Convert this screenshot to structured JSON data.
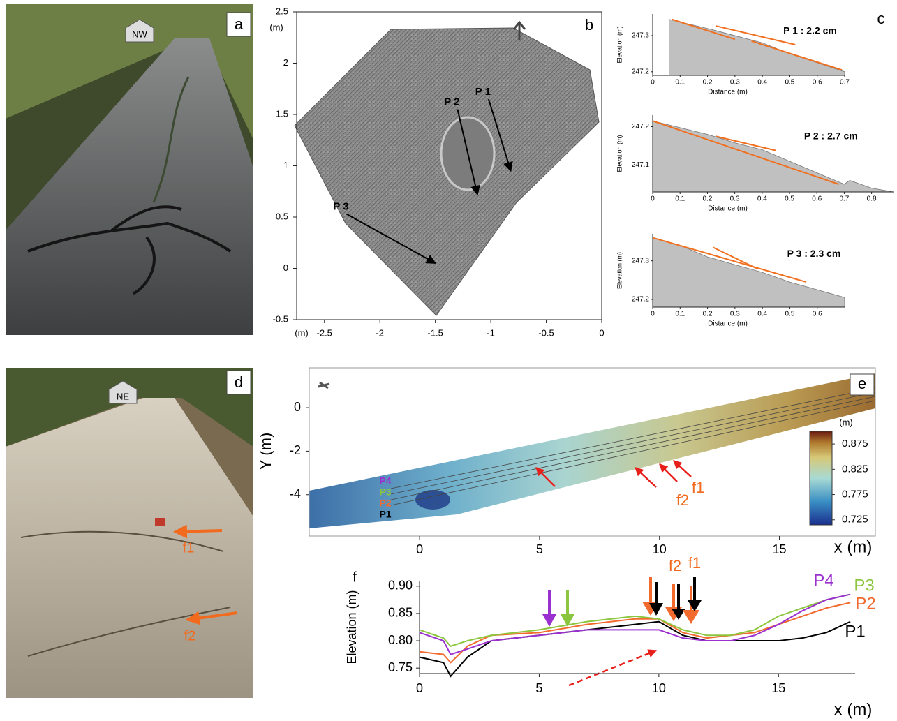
{
  "panels": {
    "a": {
      "label": "a",
      "tag": "NW"
    },
    "d": {
      "label": "d",
      "tag": "NE",
      "faults": [
        "f1",
        "f2"
      ]
    }
  },
  "chart_data": [
    {
      "type": "map",
      "label": "b",
      "x_unit": "(m)",
      "y_unit": "(m)",
      "xlim": [
        -2.75,
        0
      ],
      "ylim": [
        -0.5,
        2.5
      ],
      "xticks": [
        -2.5,
        -2,
        -1.5,
        -1,
        -0.5,
        0
      ],
      "yticks": [
        -0.5,
        0,
        0.5,
        1,
        1.5,
        2,
        2.5
      ],
      "profiles": [
        {
          "name": "P 1",
          "x": [
            -1.02,
            -0.82
          ],
          "y": [
            1.65,
            0.95
          ]
        },
        {
          "name": "P 2",
          "x": [
            -1.3,
            -1.12
          ],
          "y": [
            1.55,
            0.72
          ]
        },
        {
          "name": "P 3",
          "x": [
            -2.3,
            -1.5
          ],
          "y": [
            0.53,
            0.05
          ]
        }
      ]
    },
    {
      "type": "area",
      "label": "c",
      "title": "P 1 : 2.2 cm",
      "xlabel": "Distance (m)",
      "ylabel": "Elevation (m)",
      "xlim": [
        0,
        0.7
      ],
      "ylim": [
        247.19,
        247.36
      ],
      "xticks": [
        0,
        0.1,
        0.2,
        0.3,
        0.4,
        0.5,
        0.6,
        0.7
      ],
      "yticks": [
        247.2,
        247.3
      ],
      "color": "#c0c0c0",
      "x": [
        0.06,
        0.2,
        0.3,
        0.4,
        0.5,
        0.6,
        0.7
      ],
      "values": [
        247.345,
        247.32,
        247.3,
        247.28,
        247.25,
        247.225,
        247.2
      ],
      "fit_lines": [
        {
          "x": [
            0.07,
            0.3
          ],
          "y": [
            247.345,
            247.29
          ]
        },
        {
          "x": [
            0.23,
            0.52
          ],
          "y": [
            247.327,
            247.275
          ]
        },
        {
          "x": [
            0.36,
            0.69
          ],
          "y": [
            247.285,
            247.205
          ]
        }
      ]
    },
    {
      "type": "area",
      "title": "P 2 : 2.7 cm",
      "xlabel": "Distance (m)",
      "ylabel": "Elevation (m)",
      "xlim": [
        0,
        0.88
      ],
      "ylim": [
        247.03,
        247.23
      ],
      "xticks": [
        0,
        0.1,
        0.2,
        0.3,
        0.4,
        0.5,
        0.6,
        0.7,
        0.8
      ],
      "yticks": [
        247.1,
        247.2
      ],
      "color": "#c0c0c0",
      "x": [
        0,
        0.2,
        0.3,
        0.4,
        0.5,
        0.6,
        0.7,
        0.72,
        0.8,
        0.88
      ],
      "values": [
        247.215,
        247.18,
        247.158,
        247.14,
        247.11,
        247.08,
        247.05,
        247.06,
        247.04,
        247.03
      ],
      "fit_lines": [
        {
          "x": [
            0,
            0.68
          ],
          "y": [
            247.215,
            247.05
          ]
        },
        {
          "x": [
            0.23,
            0.45
          ],
          "y": [
            247.175,
            247.138
          ]
        }
      ]
    },
    {
      "type": "area",
      "title": "P 3 : 2.3 cm",
      "xlabel": "Distance (m)",
      "ylabel": "Elevation (m)",
      "xlim": [
        0,
        0.7
      ],
      "ylim": [
        247.18,
        247.37
      ],
      "xticks": [
        0,
        0.1,
        0.2,
        0.3,
        0.4,
        0.5,
        0.6
      ],
      "yticks": [
        247.2,
        247.3
      ],
      "color": "#c0c0c0",
      "x": [
        0,
        0.1,
        0.2,
        0.3,
        0.4,
        0.5,
        0.6,
        0.7
      ],
      "values": [
        247.36,
        247.34,
        247.31,
        247.29,
        247.27,
        247.245,
        247.225,
        247.205
      ],
      "fit_lines": [
        {
          "x": [
            0,
            0.56
          ],
          "y": [
            247.36,
            247.245
          ]
        },
        {
          "x": [
            0.22,
            0.38
          ],
          "y": [
            247.335,
            247.28
          ]
        }
      ]
    },
    {
      "type": "raster",
      "label": "e",
      "xlabel": "x (m)",
      "ylabel": "Y (m)",
      "xlim": [
        -4.6,
        19
      ],
      "ylim": [
        -5.9,
        1.83
      ],
      "xticks": [
        0,
        5,
        10,
        15
      ],
      "yticks": [
        0,
        -2,
        -4
      ],
      "colorbar": {
        "unit": "(m)",
        "lim": [
          0.715,
          0.9
        ],
        "ticks": [
          0.725,
          0.775,
          0.825,
          0.875
        ]
      },
      "profile_labels": [
        {
          "name": "P4",
          "color": "#9b30d0"
        },
        {
          "name": "P3",
          "color": "#8cc63f"
        },
        {
          "name": "P2",
          "color": "#f26a2e"
        },
        {
          "name": "P1",
          "color": "#000000"
        }
      ],
      "faults": [
        "f1",
        "f2"
      ]
    },
    {
      "type": "line",
      "label": "f",
      "xlabel": "x (m)",
      "ylabel": "Elevation (m)",
      "xlim": [
        0,
        18.2
      ],
      "ylim": [
        0.74,
        0.91
      ],
      "xticks": [
        0,
        5,
        10,
        15
      ],
      "yticks": [
        0.75,
        {
          "value": 0.8,
          "label": "0.80"
        },
        0.85,
        {
          "value": 0.9,
          "label": "0.90"
        }
      ],
      "x": [
        0,
        1,
        1.3,
        2,
        3,
        5,
        7,
        9,
        10,
        11,
        12,
        13,
        14,
        15,
        16,
        17,
        18
      ],
      "series": [
        {
          "name": "P1",
          "color": "#000000",
          "values": [
            0.77,
            0.76,
            0.735,
            0.77,
            0.8,
            0.81,
            0.82,
            0.83,
            0.835,
            0.81,
            0.8,
            0.8,
            0.8,
            0.8,
            0.805,
            0.815,
            0.835
          ]
        },
        {
          "name": "P2",
          "color": "#f26a2e",
          "values": [
            0.78,
            0.775,
            0.76,
            0.79,
            0.81,
            0.815,
            0.83,
            0.84,
            0.84,
            0.815,
            0.805,
            0.81,
            0.815,
            0.83,
            0.845,
            0.86,
            0.87
          ]
        },
        {
          "name": "P3",
          "color": "#8cc63f",
          "values": [
            0.82,
            0.805,
            0.79,
            0.8,
            0.81,
            0.82,
            0.835,
            0.845,
            0.84,
            0.82,
            0.81,
            0.81,
            0.82,
            0.845,
            0.86,
            0.875,
            0.885
          ]
        },
        {
          "name": "P4",
          "color": "#9b30d0",
          "values": [
            0.815,
            0.8,
            0.775,
            0.785,
            0.8,
            0.81,
            0.82,
            0.82,
            0.82,
            0.805,
            0.8,
            0.8,
            0.81,
            0.83,
            0.855,
            0.875,
            0.885
          ]
        }
      ],
      "faults": [
        "f2",
        "f1"
      ]
    }
  ]
}
